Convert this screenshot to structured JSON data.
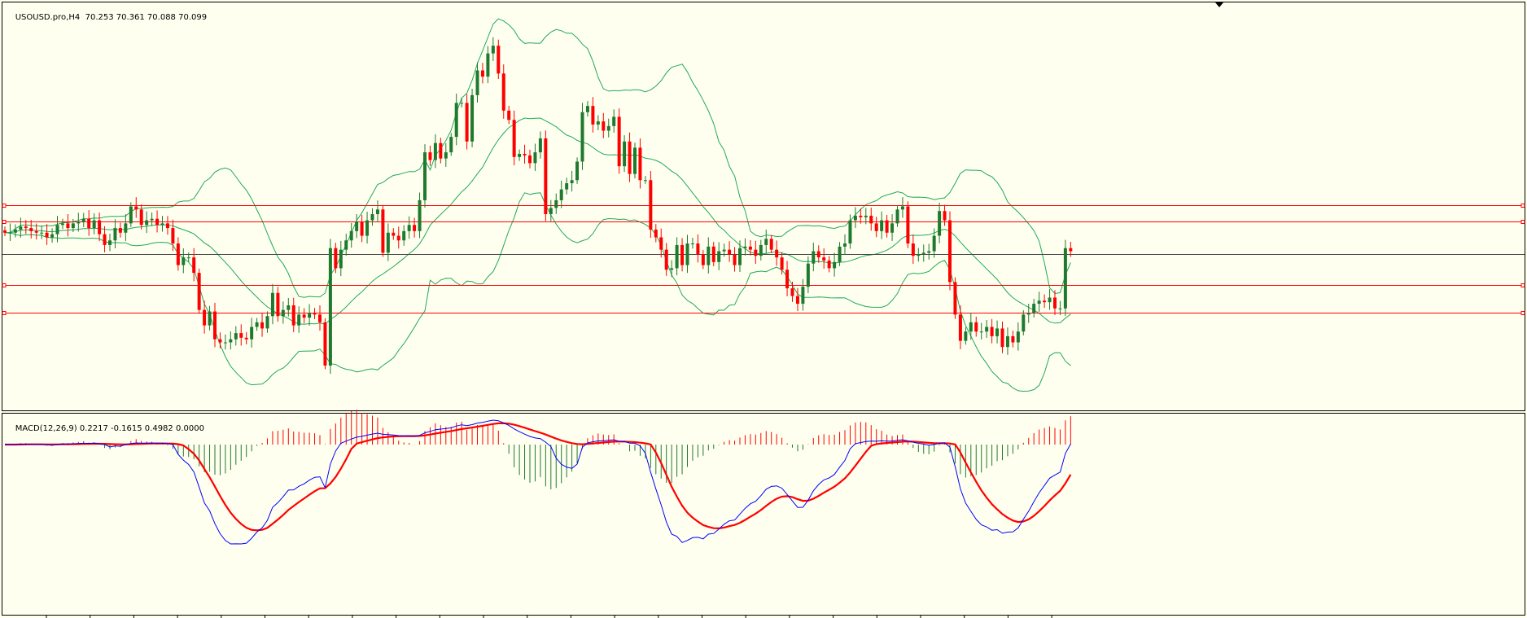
{
  "price_panel": {
    "symbol_label": "USOUSD.pro,H4",
    "ohlc_label": "70.253 70.361 70.088 70.099"
  },
  "macd_panel": {
    "label": "MACD(12,26,9) 0.2217 -0.1615 0.4982 0.0000"
  },
  "colors": {
    "background": "#ffffef",
    "bull_candle": "#1e7a2e",
    "bear_candle": "#ff0000",
    "bands": "#1faa5a",
    "hline": "#ff0000",
    "current_price_line": "#444444",
    "macd_line": "#0000ff",
    "signal_line": "#ff0000",
    "hist_pos": "#ff0000",
    "hist_neg": "#1e7a2e"
  },
  "chart_data": [
    {
      "type": "candlestick",
      "panel": "price",
      "indicators": [
        "bollinger_bands"
      ],
      "ylim": [
        59.8,
        86.2
      ],
      "horizontal_levels": [
        73.1,
        72.0,
        69.9,
        67.9,
        66.1
      ],
      "candle_closes": [
        71.3,
        71.3,
        71.5,
        71.7,
        71.6,
        71.4,
        71.3,
        71.3,
        71.0,
        71.2,
        71.8,
        71.9,
        71.6,
        71.9,
        72.0,
        72.2,
        71.6,
        72.1,
        71.2,
        70.5,
        70.8,
        71.6,
        71.3,
        71.9,
        73.0,
        72.8,
        71.8,
        72.1,
        72.2,
        71.8,
        71.9,
        71.6,
        70.6,
        69.2,
        69.7,
        69.7,
        68.7,
        66.3,
        65.3,
        66.2,
        64.4,
        64.2,
        64.2,
        64.4,
        64.8,
        64.5,
        64.4,
        65.2,
        65.5,
        65.1,
        65.9,
        67.4,
        65.9,
        66.3,
        66.6,
        65.3,
        66.0,
        65.8,
        66.1,
        66.0,
        65.5,
        62.7,
        70.3,
        69.0,
        70.2,
        70.8,
        71.4,
        72.0,
        71.1,
        72.1,
        72.5,
        72.8,
        70.0,
        71.3,
        71.1,
        70.8,
        71.4,
        71.8,
        71.4,
        73.4,
        76.5,
        76.0,
        77.1,
        76.1,
        76.5,
        77.5,
        79.7,
        79.7,
        77.2,
        80.2,
        81.8,
        81.4,
        82.9,
        83.4,
        81.6,
        79.2,
        78.6,
        76.2,
        76.4,
        76.3,
        75.8,
        76.5,
        77.4,
        72.5,
        72.9,
        73.4,
        74.1,
        74.5,
        74.7,
        75.9,
        79.1,
        79.5,
        78.3,
        78.5,
        77.9,
        78.2,
        78.8,
        75.6,
        77.2,
        75.1,
        76.8,
        74.7,
        74.7,
        71.5,
        71.0,
        70.2,
        68.9,
        69.0,
        70.5,
        69.2,
        70.6,
        70.6,
        69.9,
        69.2,
        70.4,
        69.4,
        70.1,
        70.2,
        69.9,
        69.2,
        70.3,
        70.4,
        70.2,
        69.8,
        70.5,
        70.9,
        70.2,
        69.7,
        68.9,
        67.7,
        67.2,
        66.7,
        67.8,
        69.3,
        70.1,
        69.7,
        69.5,
        69.0,
        69.4,
        70.4,
        70.6,
        72.1,
        72.4,
        72.3,
        72.4,
        71.9,
        71.4,
        72.1,
        71.3,
        71.9,
        72.8,
        73.0,
        70.6,
        69.8,
        69.9,
        70.0,
        70.1,
        71.1,
        72.7,
        72.1,
        68.1,
        66.0,
        64.3,
        64.9,
        65.5,
        64.9,
        64.9,
        65.2,
        64.6,
        65.1,
        63.9,
        64.6,
        64.2,
        64.9,
        66.0,
        66.1,
        66.7,
        66.9,
        66.8,
        67.1,
        66.4,
        66.4,
        70.3,
        70.1
      ]
    },
    {
      "type": "macd",
      "panel": "indicator",
      "params": [
        12,
        26,
        9
      ],
      "values": {
        "macd": 0.2217,
        "signal": -0.1615,
        "histogram": 0.4982,
        "zero": 0.0
      }
    }
  ]
}
